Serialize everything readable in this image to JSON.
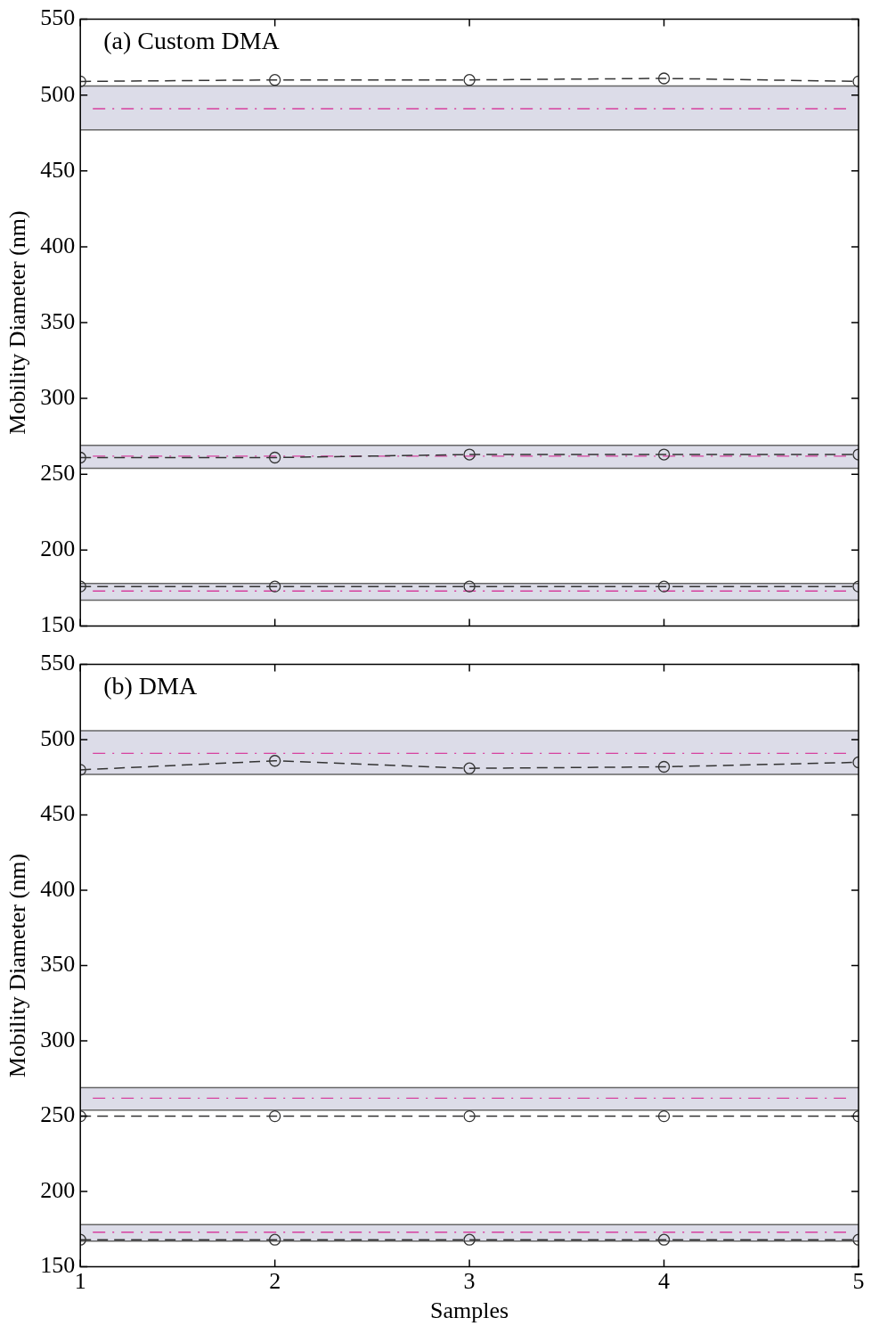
{
  "chart_data": [
    {
      "type": "line",
      "annotations": [
        "(a) Custom DMA"
      ],
      "ylabel": "Mobility Diameter (nm)",
      "x": [
        1,
        2,
        3,
        4,
        5
      ],
      "xlim": [
        1,
        5
      ],
      "xticks": [
        1,
        2,
        3,
        4,
        5
      ],
      "ylim": [
        150,
        550
      ],
      "yticks": [
        150,
        200,
        250,
        300,
        350,
        400,
        450,
        500,
        550
      ],
      "tick_labels": "y",
      "grid": false,
      "legend": false,
      "marker": "circle",
      "line_style": "dashed",
      "series": [
        {
          "color": "#333333",
          "values": [
            509,
            510,
            510,
            511,
            509
          ]
        },
        {
          "color": "#333333",
          "values": [
            261,
            261,
            263,
            263,
            263
          ]
        },
        {
          "color": "#333333",
          "values": [
            176,
            176,
            176,
            176,
            176
          ]
        }
      ],
      "bands": [
        {
          "axis": "y",
          "from": 477,
          "to": 506,
          "color": "#dcdce8"
        },
        {
          "axis": "y",
          "from": 254,
          "to": 269,
          "color": "#dcdce8"
        },
        {
          "axis": "y",
          "from": 167,
          "to": 178,
          "color": "#dcdce8"
        }
      ],
      "ref_lines": [
        {
          "axis": "y",
          "value": 491,
          "color": "#d6409f",
          "line_style": "dashed"
        },
        {
          "axis": "y",
          "value": 262,
          "color": "#d6409f",
          "line_style": "dashed"
        },
        {
          "axis": "y",
          "value": 173,
          "color": "#d6409f",
          "line_style": "dashed"
        }
      ]
    },
    {
      "type": "line",
      "annotations": [
        "(b) DMA"
      ],
      "xlabel": "Samples",
      "ylabel": "Mobility Diameter (nm)",
      "x": [
        1,
        2,
        3,
        4,
        5
      ],
      "xlim": [
        1,
        5
      ],
      "xticks": [
        1,
        2,
        3,
        4,
        5
      ],
      "ylim": [
        150,
        550
      ],
      "yticks": [
        150,
        200,
        250,
        300,
        350,
        400,
        450,
        500,
        550
      ],
      "grid": false,
      "legend": false,
      "marker": "circle",
      "line_style": "dashed",
      "series": [
        {
          "color": "#333333",
          "values": [
            480,
            486,
            481,
            482,
            485
          ]
        },
        {
          "color": "#333333",
          "values": [
            250,
            250,
            250,
            250,
            250
          ]
        },
        {
          "color": "#333333",
          "values": [
            168,
            168,
            168,
            168,
            168
          ]
        }
      ],
      "bands": [
        {
          "axis": "y",
          "from": 477,
          "to": 506,
          "color": "#dcdce8"
        },
        {
          "axis": "y",
          "from": 254,
          "to": 269,
          "color": "#dcdce8"
        },
        {
          "axis": "y",
          "from": 167,
          "to": 178,
          "color": "#dcdce8"
        }
      ],
      "ref_lines": [
        {
          "axis": "y",
          "value": 491,
          "color": "#d6409f",
          "line_style": "dashed"
        },
        {
          "axis": "y",
          "value": 262,
          "color": "#d6409f",
          "line_style": "dashed"
        },
        {
          "axis": "y",
          "value": 173,
          "color": "#d6409f",
          "line_style": "dashed"
        }
      ]
    }
  ]
}
